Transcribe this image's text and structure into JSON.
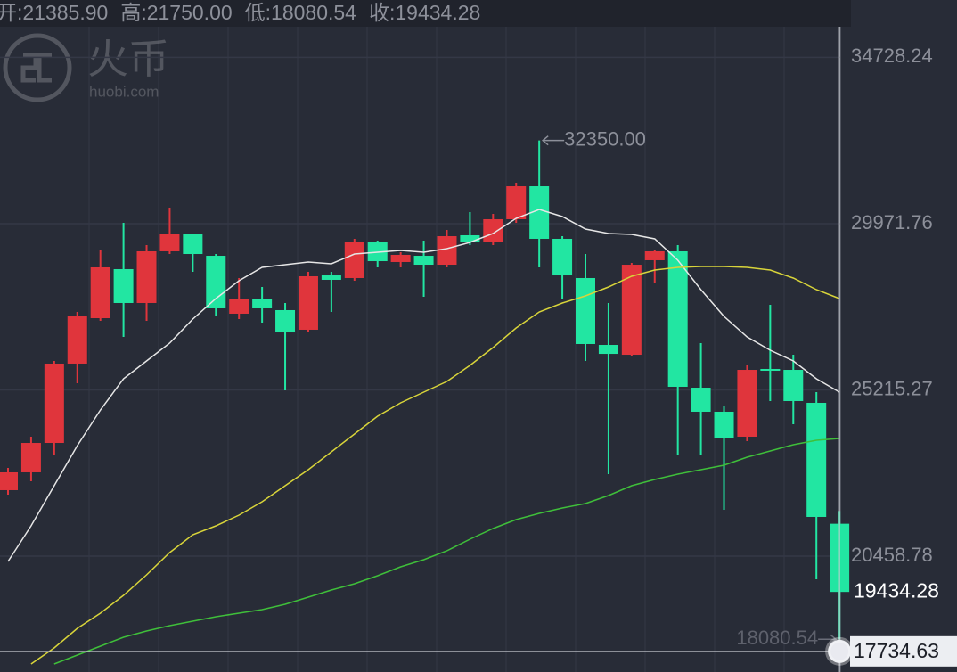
{
  "chart_data": {
    "type": "candlestick",
    "watermark": {
      "name": "火币",
      "site": "huobi.com"
    },
    "header": [
      {
        "label": "开:",
        "value": {
          "value": 21385.9,
          "label": "21385.90"
        }
      },
      {
        "label": "高:",
        "value": {
          "value": 21750,
          "label": "21750.00"
        }
      },
      {
        "label": "低:",
        "value": {
          "value": 18080.54,
          "label": "18080.54"
        }
      },
      {
        "label": "收:",
        "value": {
          "value": 19434.28,
          "label": "19434.28"
        }
      }
    ],
    "categories": [
      null,
      null,
      null,
      null,
      null,
      null,
      null,
      null,
      null,
      null,
      null,
      null,
      null,
      null,
      null,
      null,
      null,
      null,
      null,
      null,
      null,
      null,
      null,
      null,
      null,
      null,
      null,
      null,
      null,
      null,
      null,
      null,
      null,
      null,
      null,
      null,
      null
    ],
    "series": [
      {
        "up_color": "#e0353c",
        "down_color": "#22e6a2",
        "open": [
          22346,
          22856,
          23697,
          25967,
          27267,
          28670,
          27701,
          29180,
          29665,
          29052,
          27395,
          27803,
          27497,
          26936,
          28491,
          28415,
          29435,
          28874,
          29052,
          28797,
          29639,
          29460,
          30098,
          31041,
          29537,
          28415,
          26502,
          26221,
          28925,
          29180,
          25278,
          24590,
          23876,
          25814,
          25788,
          24845,
          21385.9
        ],
        "high": [
          22983,
          23876,
          26043,
          27446,
          29231,
          29996,
          29358,
          30430,
          29690,
          29103,
          28415,
          28160,
          27701,
          28593,
          28593,
          29537,
          29486,
          29154,
          29486,
          29792,
          30302,
          30251,
          31143,
          32350,
          29613,
          29103,
          27701,
          28848,
          29231,
          29358,
          26553,
          24768,
          25916,
          27650,
          26222,
          25151,
          21750
        ],
        "low": [
          22218,
          22601,
          23366,
          25406,
          27191,
          26732,
          27191,
          29103,
          28593,
          27318,
          27242,
          27140,
          25202,
          26885,
          27446,
          28338,
          28721,
          28721,
          27879,
          28721,
          29358,
          29358,
          29996,
          28721,
          27828,
          26043,
          22805,
          26171,
          28262,
          23366,
          23366,
          21785,
          23748,
          24896,
          24233,
          19796,
          18080.54
        ],
        "close": [
          22856,
          23697,
          25967,
          27318,
          28721,
          27701,
          29180,
          29665,
          29103,
          27548,
          27803,
          27548,
          26859,
          28466,
          28364,
          29435,
          28899,
          29078,
          28797,
          29613,
          29460,
          30098,
          31041,
          29537,
          28491,
          26528,
          26246,
          28797,
          29180,
          25304,
          24590,
          23825,
          25788,
          25763,
          24896,
          21581,
          19434.28
        ]
      }
    ],
    "lines": [
      {
        "color": "#e6e6e6",
        "values": [
          20306,
          21326,
          22473,
          23621,
          24641,
          25533,
          26043,
          26553,
          27242,
          27828,
          28338,
          28721,
          28797,
          28874,
          28823,
          29103,
          29154,
          29205,
          29154,
          29256,
          29435,
          29690,
          30123,
          30378,
          30174,
          29817,
          29690,
          29664,
          29537,
          28925,
          28083,
          27318,
          26732,
          26349,
          26043,
          25533,
          25151
        ]
      },
      {
        "color": "#d8d43a",
        "values": [
          null,
          17373,
          17832,
          18393,
          18827,
          19337,
          19923,
          20561,
          21071,
          21326,
          21632,
          22014,
          22473,
          22932,
          23442,
          23952,
          24462,
          24845,
          25151,
          25457,
          25916,
          26426,
          26987,
          27446,
          27701,
          27905,
          28160,
          28466,
          28644,
          28721,
          28746,
          28746,
          28721,
          28644,
          28415,
          28083,
          27828
        ]
      },
      {
        "color": "#3fbf3a",
        "values": [
          null,
          null,
          17373,
          17628,
          17883,
          18138,
          18317,
          18470,
          18597,
          18725,
          18827,
          18929,
          19082,
          19286,
          19490,
          19668,
          19898,
          20153,
          20357,
          20612,
          20943,
          21249,
          21504,
          21683,
          21836,
          21963,
          22193,
          22473,
          22652,
          22805,
          22932,
          23060,
          23289,
          23468,
          23646,
          23774,
          23825
        ]
      }
    ],
    "ylim": [
      17143.78,
      36370.78
    ],
    "yticks": [
      34728.24,
      29971.76,
      25215.27,
      20458.78
    ],
    "grid": true,
    "annotations": [
      {
        "value": 32350,
        "label": "32350.00"
      },
      {
        "value": 18080.54,
        "label": "18080.54"
      }
    ],
    "last_price": {
      "value": 19434.28,
      "label": "19434.28"
    },
    "crosshair": {
      "value": 17734.63,
      "label": "17734.63"
    }
  }
}
